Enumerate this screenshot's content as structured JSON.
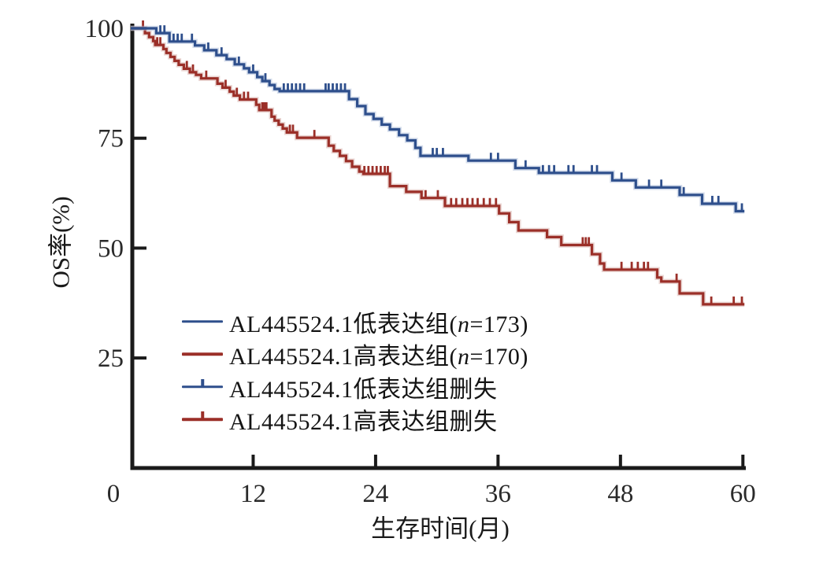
{
  "chart_data": {
    "type": "line",
    "subtype": "kaplan-meier-step",
    "title": "",
    "xlabel": "生存时间(月)",
    "ylabel": "OS率(%)",
    "x_ticks": [
      0,
      12,
      24,
      36,
      48,
      60
    ],
    "y_ticks": [
      100,
      75,
      50,
      25
    ],
    "xlim": [
      0,
      60.5
    ],
    "ylim": [
      0,
      100
    ],
    "grid": false,
    "axis_color": "#1a1a1a",
    "tick_label_color": "#2a2a2a",
    "legend_position": "inside-lower-left",
    "series": [
      {
        "key": "low",
        "name": "AL445524.1低表达组(n=173)",
        "n": 173,
        "color": "#2e4f8c",
        "halo": "#aebdd9",
        "end_month": 60.15,
        "steps": [
          [
            0,
            100
          ],
          [
            2.5,
            98.9
          ],
          [
            3.8,
            97.0
          ],
          [
            6.3,
            96.1
          ],
          [
            7.2,
            95.0
          ],
          [
            8.4,
            93.9
          ],
          [
            9.4,
            93.0
          ],
          [
            10.2,
            91.8
          ],
          [
            11.1,
            90.9
          ],
          [
            11.6,
            90.0
          ],
          [
            12.4,
            88.9
          ],
          [
            12.9,
            88.0
          ],
          [
            13.6,
            87.1
          ],
          [
            14.1,
            86.2
          ],
          [
            14.6,
            85.7
          ],
          [
            21.4,
            83.9
          ],
          [
            22.2,
            82.3
          ],
          [
            23.0,
            80.5
          ],
          [
            23.8,
            79.4
          ],
          [
            24.6,
            78.1
          ],
          [
            25.4,
            77.0
          ],
          [
            26.3,
            75.7
          ],
          [
            27.1,
            74.5
          ],
          [
            27.9,
            72.8
          ],
          [
            28.4,
            71.0
          ],
          [
            33.1,
            69.9
          ],
          [
            37.7,
            68.2
          ],
          [
            40.0,
            67.1
          ],
          [
            47.2,
            65.4
          ],
          [
            49.5,
            63.8
          ],
          [
            53.8,
            62.1
          ],
          [
            56.0,
            60.1
          ],
          [
            59.3,
            58.4
          ]
        ],
        "censor_months": [
          2.9,
          3.3,
          4.2,
          4.6,
          5.0,
          6.0,
          7.6,
          8.9,
          10.6,
          12.0,
          13.2,
          15.0,
          15.4,
          15.8,
          16.2,
          16.6,
          17.0,
          19.1,
          19.4,
          19.8,
          20.2,
          20.6,
          21.0,
          29.6,
          30.0,
          30.6,
          35.3,
          36.0,
          38.7,
          40.4,
          41.0,
          41.5,
          42.9,
          43.4,
          45.2,
          45.7,
          48.1,
          50.8,
          52.0,
          54.2,
          57.0,
          57.6,
          59.9
        ]
      },
      {
        "key": "high",
        "name": "AL445524.1高表达组(n=170)",
        "n": 170,
        "color": "#9b2f28",
        "halo": "#d6aea8",
        "end_month": 60.15,
        "steps": [
          [
            0,
            100
          ],
          [
            1.4,
            98.9
          ],
          [
            1.8,
            98.0
          ],
          [
            2.2,
            97.1
          ],
          [
            2.4,
            96.2
          ],
          [
            3.2,
            95.3
          ],
          [
            3.5,
            94.4
          ],
          [
            3.9,
            93.5
          ],
          [
            4.3,
            92.6
          ],
          [
            4.7,
            91.7
          ],
          [
            5.2,
            90.8
          ],
          [
            5.8,
            90.0
          ],
          [
            6.4,
            89.4
          ],
          [
            6.9,
            88.6
          ],
          [
            8.5,
            87.4
          ],
          [
            9.0,
            86.5
          ],
          [
            9.7,
            85.6
          ],
          [
            10.1,
            84.7
          ],
          [
            10.7,
            83.8
          ],
          [
            12.3,
            82.6
          ],
          [
            12.6,
            81.4
          ],
          [
            13.8,
            79.9
          ],
          [
            14.1,
            79.0
          ],
          [
            14.5,
            78.1
          ],
          [
            14.9,
            77.2
          ],
          [
            15.3,
            76.3
          ],
          [
            16.3,
            75.1
          ],
          [
            19.4,
            73.3
          ],
          [
            19.9,
            72.1
          ],
          [
            20.5,
            71.0
          ],
          [
            21.1,
            69.8
          ],
          [
            21.7,
            68.5
          ],
          [
            22.4,
            67.4
          ],
          [
            22.8,
            66.9
          ],
          [
            25.4,
            64.1
          ],
          [
            27.0,
            62.8
          ],
          [
            28.5,
            61.4
          ],
          [
            30.8,
            59.6
          ],
          [
            36.1,
            57.9
          ],
          [
            37.1,
            55.9
          ],
          [
            38.0,
            54.0
          ],
          [
            40.8,
            52.5
          ],
          [
            42.2,
            50.7
          ],
          [
            45.2,
            48.6
          ],
          [
            46.0,
            46.5
          ],
          [
            46.4,
            45.1
          ],
          [
            51.6,
            43.3
          ],
          [
            52.0,
            42.4
          ],
          [
            53.8,
            39.7
          ],
          [
            56.1,
            37.2
          ]
        ],
        "censor_months": [
          1.2,
          2.6,
          2.9,
          5.5,
          6.1,
          7.4,
          9.3,
          10.4,
          11.1,
          11.5,
          12.9,
          13.1,
          13.3,
          15.6,
          15.9,
          18.0,
          22.9,
          23.3,
          23.7,
          24.1,
          24.5,
          24.9,
          25.2,
          28.9,
          30.1,
          31.4,
          31.9,
          32.5,
          33.0,
          33.5,
          34.0,
          34.6,
          35.2,
          35.8,
          44.3,
          44.6,
          44.9,
          48.1,
          49.1,
          49.7,
          50.3,
          50.7,
          53.5,
          56.9,
          59.1,
          59.9
        ]
      }
    ],
    "legend": {
      "items": [
        {
          "pre": "AL445524.1低表达组(",
          "n_italic": "n",
          "post": "=173)",
          "series": 0,
          "censor_marker": false
        },
        {
          "pre": "AL445524.1高表达组(",
          "n_italic": "n",
          "post": "=170)",
          "series": 1,
          "censor_marker": false
        },
        {
          "pre": "AL445524.1低表达组删失",
          "n_italic": "",
          "post": "",
          "series": 0,
          "censor_marker": true
        },
        {
          "pre": "AL445524.1高表达组删失",
          "n_italic": "",
          "post": "",
          "series": 1,
          "censor_marker": true
        }
      ]
    }
  }
}
